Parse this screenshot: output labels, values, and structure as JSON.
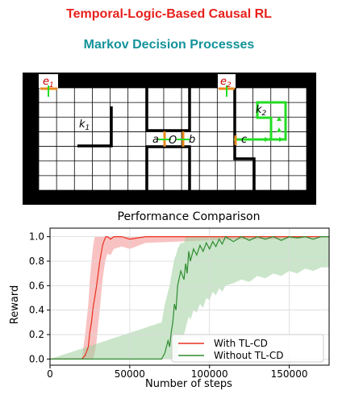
{
  "header": {
    "title": "Temporal-Logic-Based Causal RL",
    "subtitle": "Markov Decision Processes"
  },
  "gridworld": {
    "labels": {
      "e1": "e",
      "e1_sub": "1",
      "e2": "e",
      "e2_sub": "2",
      "k1": "k",
      "k1_sub": "1",
      "k2": "k",
      "k2_sub": "2",
      "a": "a",
      "o": "O",
      "b": "b",
      "c": "c"
    },
    "colors": {
      "wall": "#000000",
      "grid": "#000000",
      "path": "#22dd22",
      "marker": "#e8891d"
    }
  },
  "chart_data": {
    "type": "line",
    "title": "Performance Comparison",
    "xlabel": "Number of steps",
    "ylabel": "Reward",
    "xlim": [
      0,
      175000
    ],
    "ylim": [
      -0.05,
      1.07
    ],
    "xticks": [
      0,
      50000,
      100000,
      150000
    ],
    "xtick_labels": [
      "0",
      "50000",
      "100000",
      "150000"
    ],
    "yticks": [
      0.0,
      0.2,
      0.4,
      0.6,
      0.8,
      1.0
    ],
    "ytick_labels": [
      "0.0",
      "0.2",
      "0.4",
      "0.6",
      "0.8",
      "1.0"
    ],
    "grid": true,
    "legend": "bottom-right",
    "series": [
      {
        "name": "With TL-CD",
        "color": "#e8301f",
        "band_color": "#f48f8f",
        "x": [
          0,
          20000,
          22000,
          24000,
          25000,
          26000,
          27000,
          28000,
          29000,
          30000,
          31000,
          32000,
          33000,
          34000,
          35000,
          36000,
          38000,
          40000,
          45000,
          50000,
          60000,
          80000,
          100000,
          120000,
          140000,
          160000,
          175000
        ],
        "y": [
          0,
          0,
          0.03,
          0.1,
          0.22,
          0.3,
          0.42,
          0.5,
          0.58,
          0.68,
          0.78,
          0.86,
          0.93,
          0.97,
          1.0,
          1.0,
          0.98,
          1.0,
          1.0,
          0.98,
          1.0,
          1.0,
          1.0,
          1.0,
          1.0,
          1.0,
          1.0
        ],
        "upper": [
          0,
          0,
          0.2,
          0.45,
          0.65,
          0.8,
          0.92,
          1.0,
          1.0,
          1.0,
          1.0,
          1.0,
          1.0,
          1.0,
          1.0,
          1.0,
          1.0,
          1.0,
          1.0,
          1.0,
          1.0,
          1.0,
          1.0,
          1.0,
          1.0,
          1.0,
          1.0
        ],
        "lower": [
          0,
          0,
          0,
          0,
          0,
          0,
          0,
          0.05,
          0.12,
          0.25,
          0.38,
          0.52,
          0.65,
          0.75,
          0.82,
          0.86,
          0.85,
          0.9,
          0.92,
          0.9,
          0.95,
          0.96,
          0.97,
          0.98,
          0.98,
          0.99,
          1.0
        ]
      },
      {
        "name": "Without TL-CD",
        "color": "#2e8b2e",
        "band_color": "#9fd09f",
        "x": [
          0,
          70000,
          72000,
          74000,
          75000,
          76000,
          77000,
          78000,
          79000,
          80000,
          82000,
          84000,
          85000,
          86000,
          87000,
          88000,
          90000,
          92000,
          94000,
          96000,
          98000,
          100000,
          102000,
          104000,
          106000,
          108000,
          110000,
          115000,
          120000,
          125000,
          130000,
          135000,
          140000,
          145000,
          150000,
          155000,
          160000,
          165000,
          170000,
          175000
        ],
        "y": [
          0,
          0,
          0.05,
          0.15,
          0.1,
          0.22,
          0.3,
          0.45,
          0.4,
          0.6,
          0.72,
          0.65,
          0.78,
          0.7,
          0.88,
          0.8,
          0.9,
          0.85,
          0.93,
          0.88,
          0.95,
          0.9,
          0.96,
          0.92,
          0.98,
          0.94,
          1.0,
          0.96,
          1.0,
          0.97,
          1.0,
          0.98,
          1.0,
          0.97,
          1.0,
          0.99,
          1.0,
          0.98,
          1.0,
          1.0
        ],
        "upper": [
          0,
          0.3,
          0.45,
          0.55,
          0.6,
          0.68,
          0.75,
          0.82,
          0.85,
          0.9,
          0.95,
          0.95,
          1.0,
          1.0,
          1.0,
          1.0,
          1.0,
          1.0,
          1.0,
          1.0,
          1.0,
          1.0,
          1.0,
          1.0,
          1.0,
          1.0,
          1.0,
          1.0,
          1.0,
          1.0,
          1.0,
          1.0,
          1.0,
          1.0,
          1.0,
          1.0,
          1.0,
          1.0,
          1.0,
          1.0
        ],
        "lower": [
          0,
          0,
          0,
          0,
          0,
          0,
          0,
          0,
          0,
          0.05,
          0.15,
          0.2,
          0.25,
          0.3,
          0.35,
          0.32,
          0.4,
          0.38,
          0.45,
          0.42,
          0.5,
          0.48,
          0.55,
          0.52,
          0.58,
          0.55,
          0.6,
          0.62,
          0.65,
          0.63,
          0.68,
          0.66,
          0.7,
          0.68,
          0.72,
          0.7,
          0.74,
          0.72,
          0.75,
          0.75
        ]
      }
    ]
  }
}
